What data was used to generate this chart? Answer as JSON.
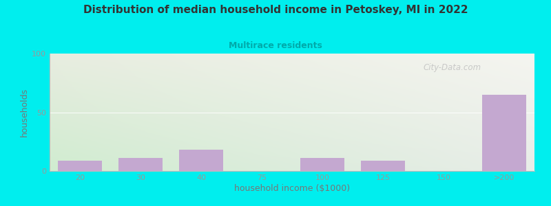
{
  "title": "Distribution of median household income in Petoskey, MI in 2022",
  "subtitle": "Multirace residents",
  "xlabel": "household income ($1000)",
  "ylabel": "households",
  "background_outer": "#00EEEE",
  "bar_color": "#C4A8D0",
  "title_color": "#333333",
  "subtitle_color": "#00AAAA",
  "axis_label_color": "#777777",
  "tick_label_color": "#999999",
  "categories": [
    "20",
    "30",
    "40",
    "75",
    "100",
    "125",
    "150",
    ">200"
  ],
  "values": [
    9,
    11,
    18,
    0,
    11,
    9,
    0,
    65
  ],
  "xlim": [
    -0.5,
    7.5
  ],
  "ylim": [
    0,
    100
  ],
  "yticks": [
    0,
    50,
    100
  ],
  "watermark": "City-Data.com",
  "bg_color_topleft": "#e8ede0",
  "bg_color_topright": "#f5f5f0",
  "bg_color_bottomleft": "#d0ecd0",
  "bg_color_bottomright": "#e8ede8"
}
